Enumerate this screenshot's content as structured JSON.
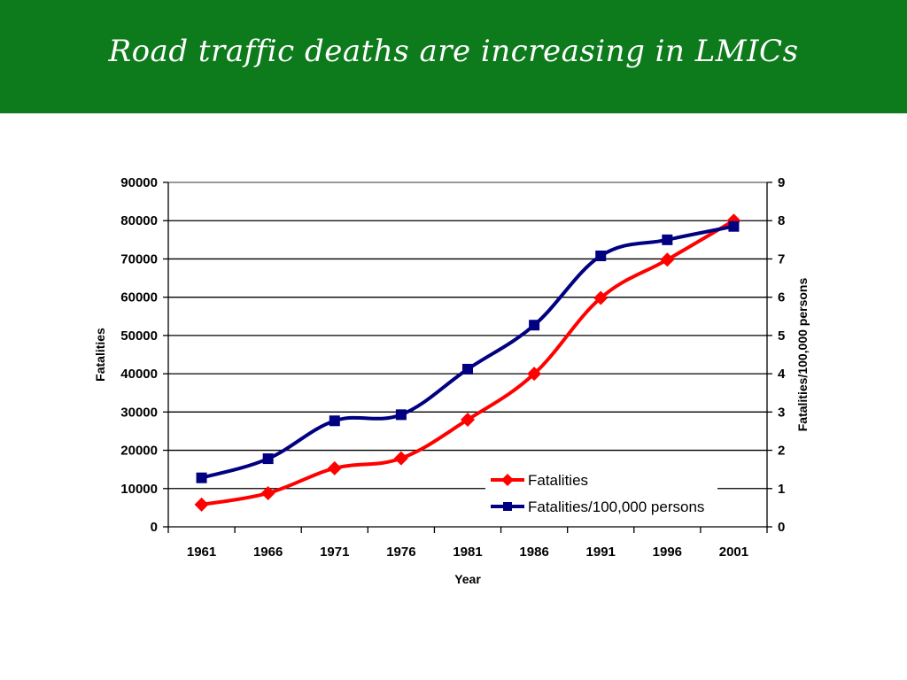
{
  "slide": {
    "title": "Road traffic deaths are increasing in LMICs"
  },
  "colors": {
    "header_bg": "#0d7a1c",
    "fatalities": "#ff0000",
    "rate": "#000080",
    "gridline": "#000000",
    "top_gridline": "#999999"
  },
  "chart_data": {
    "type": "line",
    "x": [
      "1961",
      "1966",
      "1971",
      "1976",
      "1981",
      "1986",
      "1991",
      "1996",
      "2001"
    ],
    "xlabel": "Year",
    "ylabel": "Fatalities",
    "y2label": "Fatalities/100,000 persons",
    "ylim": [
      0,
      90000
    ],
    "y2lim": [
      0,
      9
    ],
    "yticks": [
      "0",
      "10000",
      "20000",
      "30000",
      "40000",
      "50000",
      "60000",
      "70000",
      "80000",
      "90000"
    ],
    "y2ticks": [
      "0",
      "1",
      "2",
      "3",
      "4",
      "5",
      "6",
      "7",
      "8",
      "9"
    ],
    "grid": true,
    "legend_position": "lower-right",
    "series": [
      {
        "name": "Fatalities",
        "axis": "left",
        "marker": "diamond",
        "values": [
          5800,
          8800,
          15300,
          17900,
          28000,
          40000,
          59800,
          69800,
          80000
        ]
      },
      {
        "name": "Fatalities/100,000 persons",
        "axis": "right",
        "marker": "square",
        "values": [
          1.28,
          1.78,
          2.77,
          2.93,
          4.12,
          5.27,
          7.08,
          7.5,
          7.85
        ]
      }
    ]
  }
}
